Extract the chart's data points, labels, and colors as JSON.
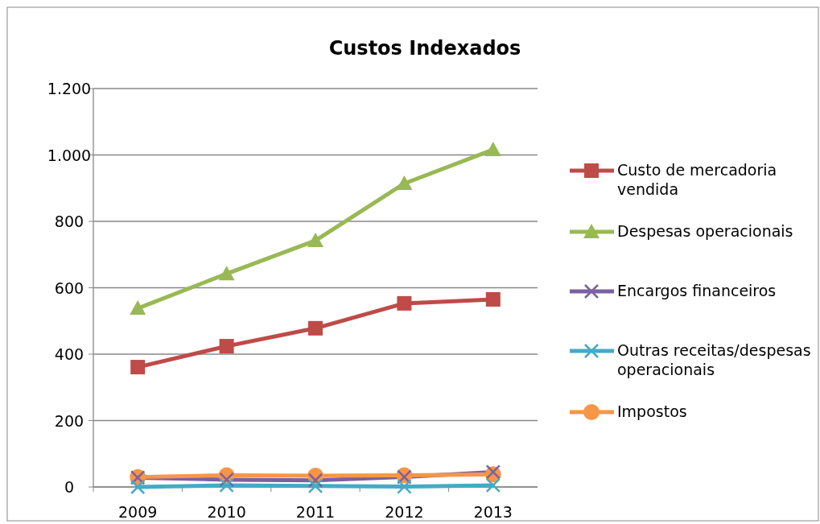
{
  "chart_data": {
    "type": "line",
    "title": "Custos Indexados",
    "categories": [
      "2009",
      "2010",
      "2011",
      "2012",
      "2013"
    ],
    "ylim": [
      0,
      1200
    ],
    "yticks": [
      {
        "value": 0,
        "label": "0"
      },
      {
        "value": 200,
        "label": "200"
      },
      {
        "value": 400,
        "label": "400"
      },
      {
        "value": 600,
        "label": "600"
      },
      {
        "value": 800,
        "label": "800"
      },
      {
        "value": 1000,
        "label": "1.000"
      },
      {
        "value": 1200,
        "label": "1.200"
      }
    ],
    "grid": "y",
    "legend": "right",
    "series": [
      {
        "name": "Custo de mercadoria vendida",
        "color": "#be4b48",
        "marker": "square",
        "values": [
          361,
          424,
          478,
          553,
          565
        ]
      },
      {
        "name": "Despesas operacionais",
        "color": "#98b954",
        "marker": "triangle",
        "values": [
          538,
          642,
          742,
          914,
          1016
        ]
      },
      {
        "name": "Encargos financeiros",
        "color": "#7d60a0",
        "marker": "cross",
        "values": [
          28,
          22,
          20,
          30,
          45
        ]
      },
      {
        "name": "Outras receitas/despesas operacionais",
        "color": "#46aac5",
        "marker": "cross",
        "values": [
          0,
          5,
          3,
          1,
          5
        ]
      },
      {
        "name": "Impostos",
        "color": "#f79646",
        "marker": "circle",
        "values": [
          30,
          35,
          34,
          35,
          38
        ]
      }
    ]
  }
}
